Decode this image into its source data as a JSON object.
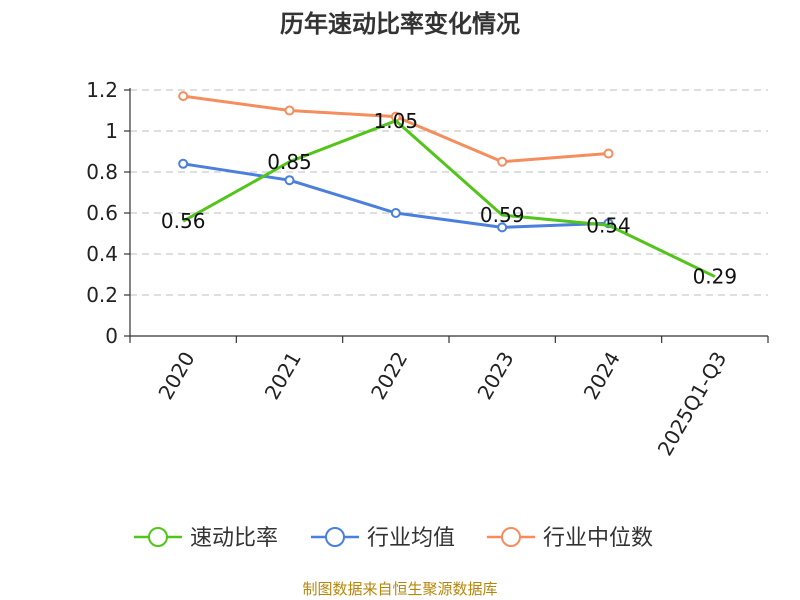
{
  "chart_data": {
    "type": "line",
    "title": "历年速动比率变化情况",
    "categories": [
      "2020",
      "2021",
      "2022",
      "2023",
      "2024",
      "2025Q1-Q3"
    ],
    "ylim": [
      0,
      1.2
    ],
    "yticks": [
      "0",
      "0.2",
      "0.4",
      "0.6",
      "0.8",
      "1",
      "1.2"
    ],
    "grid": true,
    "legend_position": "bottom",
    "series": [
      {
        "name": "速动比率",
        "color": "#52c41a",
        "values": [
          0.56,
          0.85,
          1.05,
          0.59,
          0.54,
          0.29
        ],
        "labels": [
          "0.56",
          "0.85",
          "1.05",
          "0.59",
          "0.54",
          "0.29"
        ]
      },
      {
        "name": "行业均值",
        "color": "#4a7fdc",
        "values": [
          0.84,
          0.76,
          0.6,
          0.53,
          0.55,
          null
        ]
      },
      {
        "name": "行业中位数",
        "color": "#f58d5d",
        "values": [
          1.17,
          1.1,
          1.07,
          0.85,
          0.89,
          null
        ]
      }
    ]
  },
  "footer": "制图数据来自恒生聚源数据库"
}
